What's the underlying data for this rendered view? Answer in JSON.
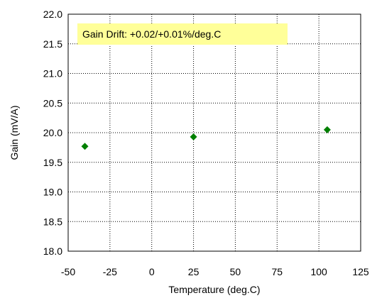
{
  "chart_data": {
    "type": "scatter",
    "title": "",
    "xlabel": "Temperature (deg.C)",
    "ylabel": "Gain (mV/A)",
    "xlim": [
      -50,
      125
    ],
    "ylim": [
      18.0,
      22.0
    ],
    "x_ticks": [
      "-50",
      "-25",
      "0",
      "25",
      "50",
      "75",
      "100",
      "125"
    ],
    "y_ticks": [
      "18.0",
      "18.5",
      "19.0",
      "19.5",
      "20.0",
      "20.5",
      "21.0",
      "21.5",
      "22.0"
    ],
    "grid": true,
    "legend": "none",
    "annotation": "Gain Drift: +0.02/+0.01%/deg.C",
    "series": [
      {
        "color": "#008000",
        "marker": "diamond",
        "points": [
          {
            "x": -40,
            "y": 19.77
          },
          {
            "x": 25,
            "y": 19.93
          },
          {
            "x": 105,
            "y": 20.05
          }
        ]
      }
    ],
    "annotation_bg": "#ffff99"
  }
}
